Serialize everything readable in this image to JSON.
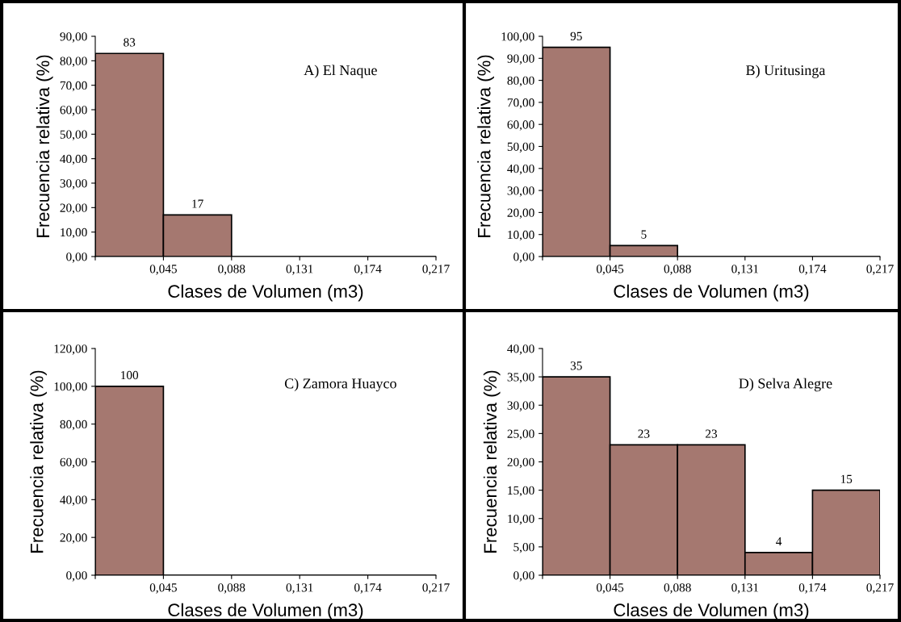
{
  "chart_data": [
    {
      "type": "histogram",
      "bins": [
        0.002,
        0.045,
        0.088,
        0.131,
        0.174,
        0.217
      ],
      "values": [
        83,
        17,
        0,
        0,
        0
      ],
      "value_labels": [
        "83",
        "17",
        null,
        null,
        null
      ],
      "color": "#a57870",
      "xlabel": "Clases de Volumen (m3)",
      "ylabel": "Frecuencia relativa (%)",
      "annotations": [
        "A) El Naque"
      ],
      "xlim": [
        0.002,
        0.217
      ],
      "xticks": [
        {
          "value": 0.002,
          "label": null
        },
        {
          "value": 0.045,
          "label": "0,045"
        },
        {
          "value": 0.088,
          "label": "0,088"
        },
        {
          "value": 0.131,
          "label": "0,131"
        },
        {
          "value": 0.174,
          "label": "0,174"
        },
        {
          "value": 0.217,
          "label": "0,217"
        }
      ],
      "ylim": [
        0,
        90
      ],
      "yticks": [
        {
          "value": 0,
          "label": "0,00"
        },
        {
          "value": 10,
          "label": "10,00"
        },
        {
          "value": 20,
          "label": "20,00"
        },
        {
          "value": 30,
          "label": "30,00"
        },
        {
          "value": 40,
          "label": "40,00"
        },
        {
          "value": 50,
          "label": "50,00"
        },
        {
          "value": 60,
          "label": "60,00"
        },
        {
          "value": 70,
          "label": "70,00"
        },
        {
          "value": 80,
          "label": "80,00"
        },
        {
          "value": 90,
          "label": "90,00"
        }
      ]
    },
    {
      "type": "histogram",
      "bins": [
        0.002,
        0.045,
        0.088,
        0.131,
        0.174,
        0.217
      ],
      "values": [
        95,
        5,
        0,
        0,
        0
      ],
      "value_labels": [
        "95",
        "5",
        null,
        null,
        null
      ],
      "color": "#a57870",
      "xlabel": "Clases de Volumen (m3)",
      "ylabel": "Frecuencia relativa (%)",
      "annotations": [
        "B) Uritusinga"
      ],
      "xlim": [
        0.002,
        0.217
      ],
      "xticks": [
        {
          "value": 0.002,
          "label": null
        },
        {
          "value": 0.045,
          "label": "0,045"
        },
        {
          "value": 0.088,
          "label": "0,088"
        },
        {
          "value": 0.131,
          "label": "0,131"
        },
        {
          "value": 0.174,
          "label": "0,174"
        },
        {
          "value": 0.217,
          "label": "0,217"
        }
      ],
      "ylim": [
        0,
        100
      ],
      "yticks": [
        {
          "value": 0,
          "label": "0,00"
        },
        {
          "value": 10,
          "label": "10,00"
        },
        {
          "value": 20,
          "label": "20,00"
        },
        {
          "value": 30,
          "label": "30,00"
        },
        {
          "value": 40,
          "label": "40,00"
        },
        {
          "value": 50,
          "label": "50,00"
        },
        {
          "value": 60,
          "label": "60,00"
        },
        {
          "value": 70,
          "label": "70,00"
        },
        {
          "value": 80,
          "label": "80,00"
        },
        {
          "value": 90,
          "label": "90,00"
        },
        {
          "value": 100,
          "label": "100,00"
        }
      ]
    },
    {
      "type": "histogram",
      "bins": [
        0.002,
        0.045,
        0.088,
        0.131,
        0.174,
        0.217
      ],
      "values": [
        100,
        0,
        0,
        0,
        0
      ],
      "value_labels": [
        "100",
        null,
        null,
        null,
        null
      ],
      "color": "#a57870",
      "xlabel": "Clases de Volumen (m3)",
      "ylabel": "Frecuencia relativa (%)",
      "annotations": [
        "C) Zamora Huayco"
      ],
      "xlim": [
        0.002,
        0.217
      ],
      "xticks": [
        {
          "value": 0.002,
          "label": null
        },
        {
          "value": 0.045,
          "label": "0,045"
        },
        {
          "value": 0.088,
          "label": "0,088"
        },
        {
          "value": 0.131,
          "label": "0,131"
        },
        {
          "value": 0.174,
          "label": "0,174"
        },
        {
          "value": 0.217,
          "label": "0,217"
        }
      ],
      "ylim": [
        0,
        120
      ],
      "yticks": [
        {
          "value": 0,
          "label": "0,00"
        },
        {
          "value": 20,
          "label": "20,00"
        },
        {
          "value": 40,
          "label": "40,00"
        },
        {
          "value": 60,
          "label": "60,00"
        },
        {
          "value": 80,
          "label": "80,00"
        },
        {
          "value": 100,
          "label": "100,00"
        },
        {
          "value": 120,
          "label": "120,00"
        }
      ]
    },
    {
      "type": "histogram",
      "bins": [
        0.002,
        0.045,
        0.088,
        0.131,
        0.174,
        0.217
      ],
      "values": [
        35,
        23,
        23,
        4,
        15
      ],
      "value_labels": [
        "35",
        "23",
        "23",
        "4",
        "15"
      ],
      "color": "#a57870",
      "xlabel": "Clases de Volumen (m3)",
      "ylabel": "Frecuencia relativa (%)",
      "annotations": [
        "D) Selva Alegre"
      ],
      "xlim": [
        0.002,
        0.217
      ],
      "xticks": [
        {
          "value": 0.002,
          "label": null
        },
        {
          "value": 0.045,
          "label": "0,045"
        },
        {
          "value": 0.088,
          "label": "0,088"
        },
        {
          "value": 0.131,
          "label": "0,131"
        },
        {
          "value": 0.174,
          "label": "0,174"
        },
        {
          "value": 0.217,
          "label": "0,217"
        }
      ],
      "ylim": [
        0,
        40
      ],
      "yticks": [
        {
          "value": 0,
          "label": "0,00"
        },
        {
          "value": 5,
          "label": "5,00"
        },
        {
          "value": 10,
          "label": "10,00"
        },
        {
          "value": 15,
          "label": "15,00"
        },
        {
          "value": 20,
          "label": "20,00"
        },
        {
          "value": 25,
          "label": "25,00"
        },
        {
          "value": 30,
          "label": "30,00"
        },
        {
          "value": 35,
          "label": "35,00"
        },
        {
          "value": 40,
          "label": "40,00"
        }
      ]
    }
  ]
}
